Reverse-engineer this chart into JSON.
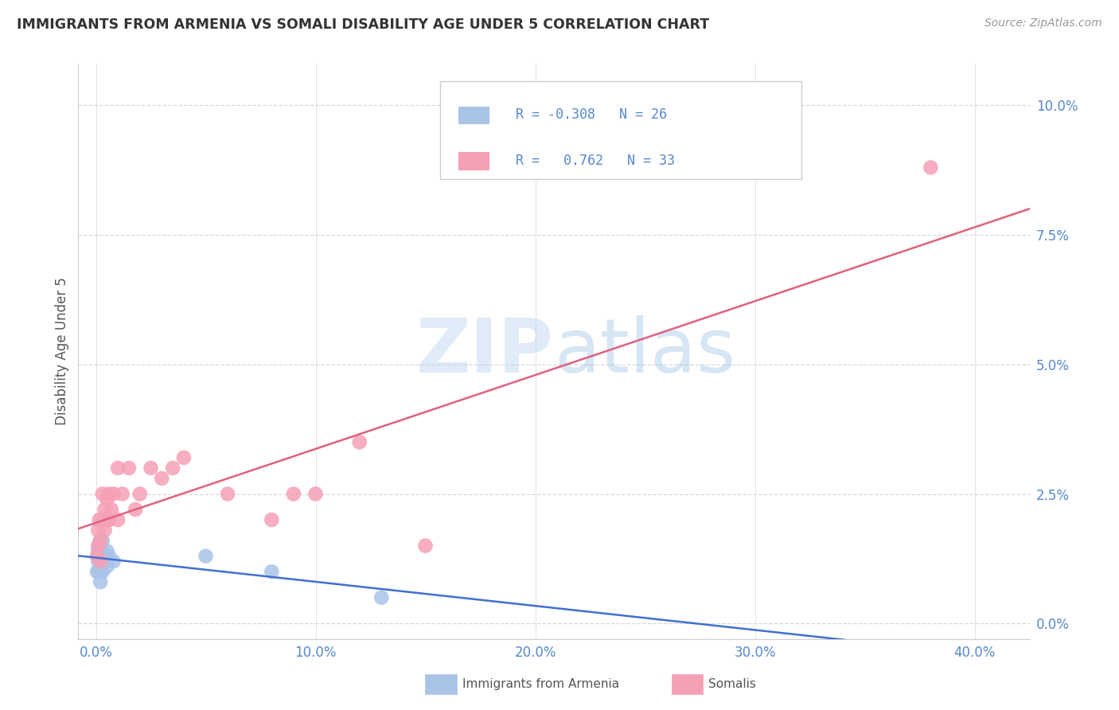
{
  "title": "IMMIGRANTS FROM ARMENIA VS SOMALI DISABILITY AGE UNDER 5 CORRELATION CHART",
  "source": "Source: ZipAtlas.com",
  "xlabel_ticks": [
    "0.0%",
    "10.0%",
    "20.0%",
    "30.0%",
    "40.0%"
  ],
  "xlabel_tick_vals": [
    0.0,
    0.1,
    0.2,
    0.3,
    0.4
  ],
  "ylabel": "Disability Age Under 5",
  "ylabel_ticks": [
    "0.0%",
    "2.5%",
    "5.0%",
    "7.5%",
    "10.0%"
  ],
  "ylabel_tick_vals": [
    0.0,
    0.025,
    0.05,
    0.075,
    0.1
  ],
  "xlim": [
    -0.008,
    0.425
  ],
  "ylim": [
    -0.003,
    0.108
  ],
  "watermark_zip": "ZIP",
  "watermark_atlas": "atlas",
  "legend_armenia_r": "-0.308",
  "legend_armenia_n": "26",
  "legend_somali_r": "0.762",
  "legend_somali_n": "33",
  "armenia_color": "#aac4e8",
  "somali_color": "#f5a0b5",
  "armenia_line_color": "#4070d0",
  "somali_line_color": "#e06080",
  "background_color": "#ffffff",
  "grid_color": "#d8d8d8",
  "tick_color": "#5588cc",
  "armenia_x": [
    0.0005,
    0.001,
    0.001,
    0.001,
    0.0015,
    0.0015,
    0.002,
    0.002,
    0.002,
    0.002,
    0.002,
    0.002,
    0.0025,
    0.003,
    0.003,
    0.003,
    0.003,
    0.004,
    0.004,
    0.005,
    0.005,
    0.006,
    0.008,
    0.05,
    0.08,
    0.13
  ],
  "armenia_y": [
    0.01,
    0.012,
    0.013,
    0.014,
    0.01,
    0.015,
    0.008,
    0.01,
    0.012,
    0.013,
    0.015,
    0.016,
    0.012,
    0.01,
    0.012,
    0.014,
    0.016,
    0.012,
    0.013,
    0.011,
    0.014,
    0.013,
    0.012,
    0.013,
    0.01,
    0.005
  ],
  "somali_x": [
    0.0005,
    0.001,
    0.001,
    0.0015,
    0.002,
    0.002,
    0.003,
    0.003,
    0.004,
    0.004,
    0.005,
    0.005,
    0.006,
    0.006,
    0.007,
    0.008,
    0.01,
    0.01,
    0.012,
    0.015,
    0.018,
    0.02,
    0.025,
    0.03,
    0.035,
    0.04,
    0.06,
    0.08,
    0.09,
    0.1,
    0.12,
    0.15,
    0.38
  ],
  "somali_y": [
    0.013,
    0.015,
    0.018,
    0.02,
    0.012,
    0.016,
    0.02,
    0.025,
    0.018,
    0.022,
    0.02,
    0.024,
    0.02,
    0.025,
    0.022,
    0.025,
    0.02,
    0.03,
    0.025,
    0.03,
    0.022,
    0.025,
    0.03,
    0.028,
    0.03,
    0.032,
    0.025,
    0.02,
    0.025,
    0.025,
    0.035,
    0.015,
    0.088
  ]
}
